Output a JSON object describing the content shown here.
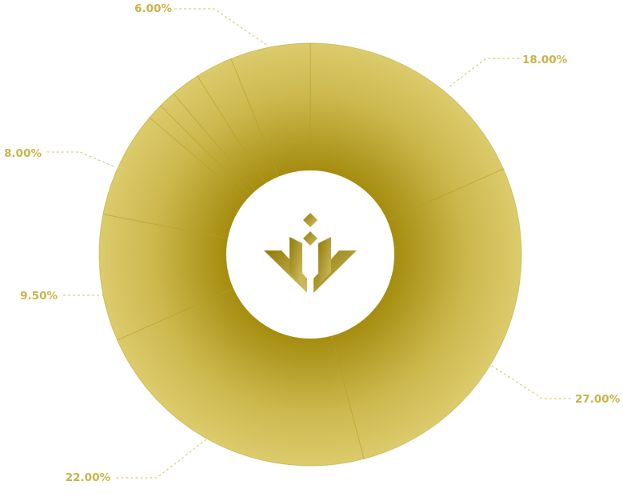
{
  "chart_data": {
    "type": "pie",
    "donut": true,
    "slices": [
      {
        "label": "18.00%",
        "value": 18.0
      },
      {
        "label": "27.00%",
        "value": 27.0
      },
      {
        "label": "22.00%",
        "value": 22.0
      },
      {
        "label": "9.50%",
        "value": 9.5
      },
      {
        "label": "8.00%",
        "value": 8.0
      },
      {
        "label": "",
        "value": 1.2
      },
      {
        "label": "",
        "value": 1.3
      },
      {
        "label": "",
        "value": 2.2
      },
      {
        "label": "",
        "value": 2.8
      },
      {
        "label": "6.00%",
        "value": 6.0
      }
    ],
    "legend": "none",
    "center_icon": "gold-crest-logo-icon"
  },
  "colors": {
    "label": "#c8b44a",
    "leader": "#d2c26a",
    "gold_dark": "#9c8506",
    "gold_mid": "#c9b145",
    "gold_light": "#e3d57a",
    "hole": "#ffffff"
  }
}
